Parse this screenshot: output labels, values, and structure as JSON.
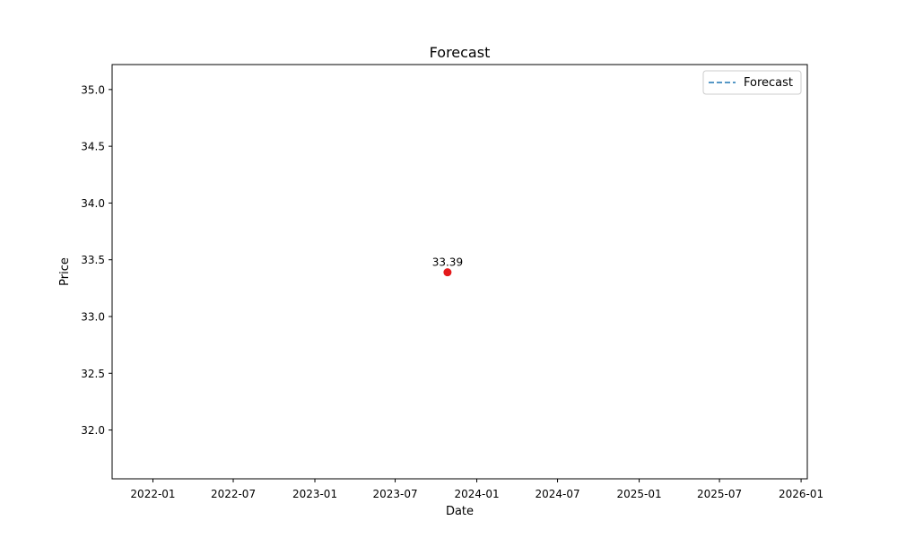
{
  "chart_data": {
    "type": "scatter",
    "title": "Forecast",
    "xlabel": "Date",
    "ylabel": "Price",
    "x_axis_type": "date",
    "xlim": [
      "2021-10-01",
      "2026-01-15"
    ],
    "ylim": [
      31.57,
      35.22
    ],
    "x_ticks": [
      "2022-01",
      "2022-07",
      "2023-01",
      "2023-07",
      "2024-01",
      "2024-07",
      "2025-01",
      "2025-07",
      "2026-01"
    ],
    "y_ticks": [
      32.0,
      32.5,
      33.0,
      33.5,
      34.0,
      34.5,
      35.0
    ],
    "y_tick_labels": [
      "32.0",
      "32.5",
      "33.0",
      "33.5",
      "34.0",
      "34.5",
      "35.0"
    ],
    "grid": false,
    "legend": {
      "position": "top-right",
      "entries": [
        "Forecast"
      ]
    },
    "series": [
      {
        "name": "Forecast",
        "style": "dashed-line",
        "color": "#1f77b4",
        "x": [],
        "y": []
      }
    ],
    "points": [
      {
        "x": "2023-10-27",
        "y": 33.39,
        "label": "33.39",
        "color": "#e41a1c"
      }
    ]
  }
}
